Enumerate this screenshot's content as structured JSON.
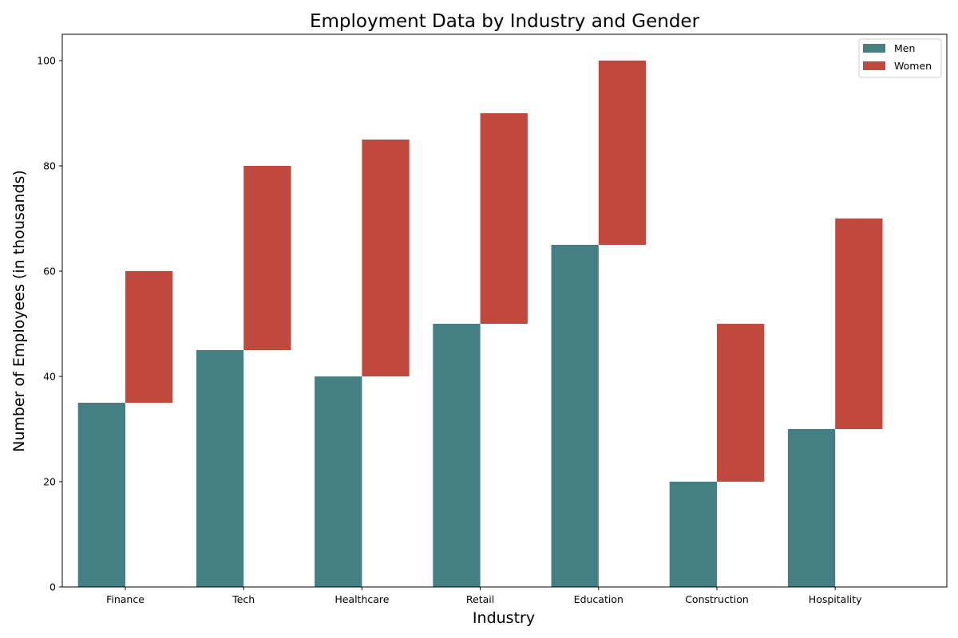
{
  "chart_data": {
    "type": "bar",
    "title": "Employment Data by Industry and Gender",
    "xlabel": "Industry",
    "ylabel": "Number of Employees (in thousands)",
    "categories": [
      "Finance",
      "Tech",
      "Healthcare",
      "Retail",
      "Education",
      "Construction",
      "Hospitality"
    ],
    "series": [
      {
        "name": "Men",
        "color": "#437f83",
        "values": [
          35,
          45,
          40,
          50,
          65,
          20,
          30
        ]
      },
      {
        "name": "Women",
        "color": "#c1483c",
        "values": [
          25,
          35,
          45,
          40,
          35,
          30,
          40
        ]
      }
    ],
    "women_bar_base": [
      35,
      45,
      40,
      50,
      65,
      20,
      30
    ],
    "ylim": [
      0,
      105
    ],
    "yticks": [
      0,
      20,
      40,
      60,
      80,
      100
    ],
    "grid": false,
    "legend_position": "top-right"
  }
}
